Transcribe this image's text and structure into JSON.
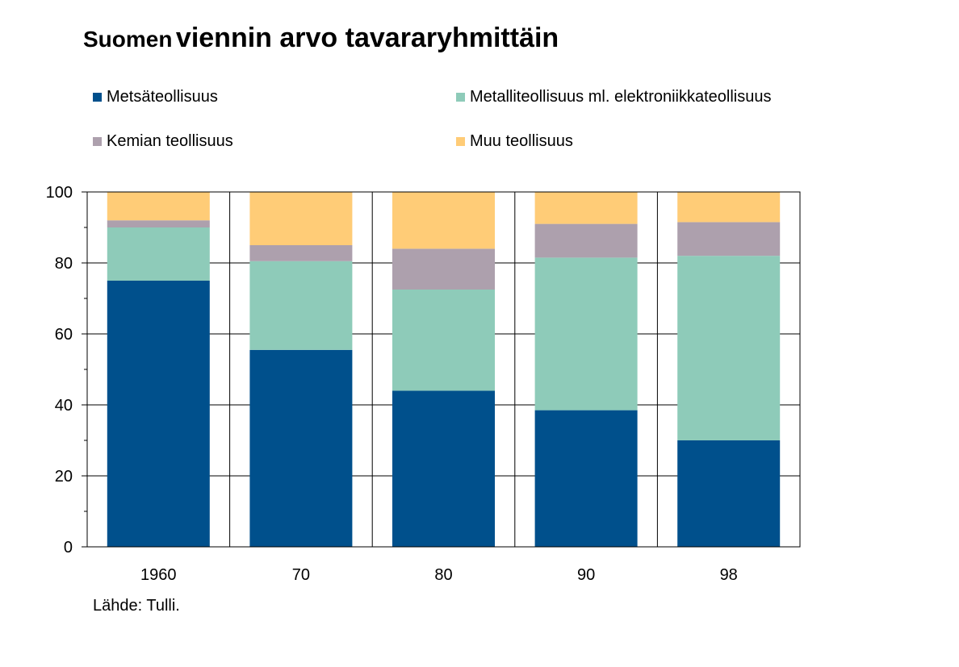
{
  "chart_data": {
    "type": "bar",
    "stacked": true,
    "title_prefix": "Suomen",
    "title_main": "viennin arvo tavararyhmittäin",
    "categories": [
      "1960",
      "70",
      "80",
      "90",
      "98"
    ],
    "series": [
      {
        "name": "Metsäteollisuus",
        "color": "#00508c",
        "values": [
          75,
          55.5,
          44,
          38.5,
          30
        ]
      },
      {
        "name": "Metalliteollisuus ml. elektroniikkateollisuus",
        "color": "#8ecbb9",
        "values": [
          15,
          25,
          28.5,
          43,
          52
        ]
      },
      {
        "name": "Kemian teollisuus",
        "color": "#ada0ad",
        "values": [
          2,
          4.5,
          11.5,
          9.5,
          9.5
        ]
      },
      {
        "name": "Muu teollisuus",
        "color": "#ffcc77",
        "values": [
          8,
          15,
          16,
          9,
          8.5
        ]
      }
    ],
    "ylim": [
      0,
      100
    ],
    "yticks": [
      0,
      20,
      40,
      60,
      80,
      100
    ],
    "grid": true,
    "legend": "top"
  },
  "source": "Lähde: Tulli."
}
